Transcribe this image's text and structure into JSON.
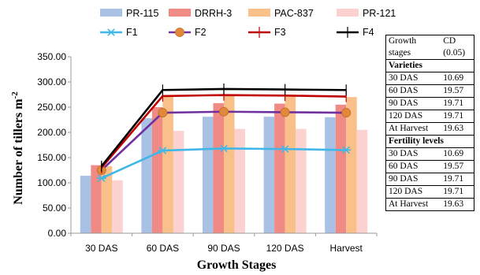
{
  "chart_data": {
    "type": "bar",
    "categories": [
      "30 DAS",
      "60 DAS",
      "90 DAS",
      "120 DAS",
      "Harvest"
    ],
    "xlabel": "Growth Stages",
    "ylabel": "Number of tillers m",
    "ylabel_sup": "-2",
    "ylim": [
      0,
      350
    ],
    "yticks": [
      "0.00",
      "50.00",
      "100.00",
      "150.00",
      "200.00",
      "250.00",
      "300.00",
      "350.00"
    ],
    "grid": false,
    "legend": "top",
    "bar_series": [
      {
        "name": "PR-115",
        "color": "#a9c1e4",
        "values": [
          114,
          228,
          231,
          231,
          230
        ]
      },
      {
        "name": "DRRH-3",
        "color": "#f08a84",
        "values": [
          135,
          250,
          258,
          257,
          255
        ]
      },
      {
        "name": "PAC-837",
        "color": "#f9c08a",
        "values": [
          133,
          271,
          275,
          275,
          270
        ]
      },
      {
        "name": "PR-121",
        "color": "#fbd2d0",
        "values": [
          105,
          203,
          207,
          207,
          205
        ]
      }
    ],
    "line_series": [
      {
        "name": "F1",
        "color": "#3fb7e8",
        "marker": "star",
        "values": [
          109,
          164,
          168,
          167,
          165
        ]
      },
      {
        "name": "F2",
        "color": "#7030a0",
        "marker": "circle",
        "values": [
          125,
          239,
          241,
          240,
          239
        ]
      },
      {
        "name": "F3",
        "color": "#c00000",
        "marker": "plus",
        "values": [
          130,
          272,
          274,
          273,
          271
        ]
      },
      {
        "name": "F4",
        "color": "#000000",
        "marker": "plus",
        "values": [
          133,
          284,
          286,
          285,
          284
        ]
      }
    ]
  },
  "cd_table": {
    "header_col1_line1": "Growth",
    "header_col1_line2": "stages",
    "header_col2_line1": "CD",
    "header_col2_line2": "(0.05)",
    "varieties_label": "Varieties",
    "varieties": [
      {
        "stage": "30 DAS",
        "cd": "10.69"
      },
      {
        "stage": "60 DAS",
        "cd": "19.57"
      },
      {
        "stage": "90 DAS",
        "cd": "19.71"
      },
      {
        "stage": "120 DAS",
        "cd": "19.71"
      },
      {
        "stage": "At Harvest",
        "cd": "19.63"
      }
    ],
    "fertility_label": "Fertility levels",
    "fertility": [
      {
        "stage": "30 DAS",
        "cd": "10.69"
      },
      {
        "stage": "60 DAS",
        "cd": "19.57"
      },
      {
        "stage": "90 DAS",
        "cd": "19.71"
      },
      {
        "stage": "120 DAS",
        "cd": "19.71"
      },
      {
        "stage": "At Harvest",
        "cd": "19.63"
      }
    ]
  }
}
